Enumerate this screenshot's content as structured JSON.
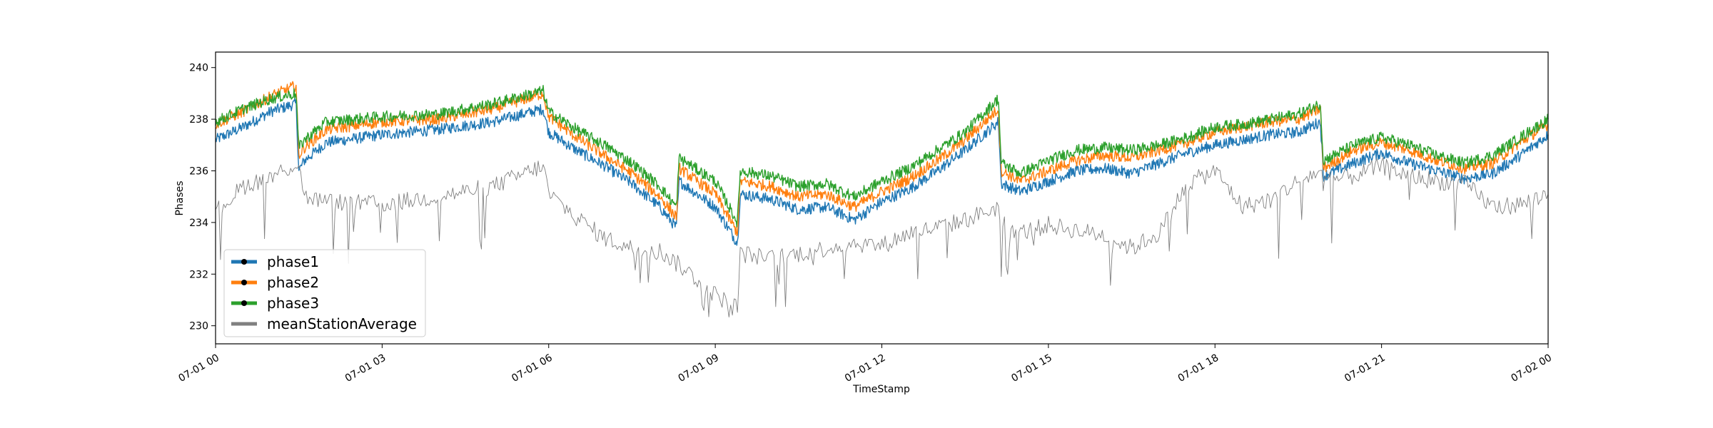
{
  "chart_data": {
    "type": "line",
    "xlabel": "TimeStamp",
    "ylabel": "Phases",
    "xlim_hours": [
      0,
      24
    ],
    "ylim": [
      229.3,
      240.6
    ],
    "x_ticks": [
      {
        "hour": 0,
        "label": "07-01 00"
      },
      {
        "hour": 3,
        "label": "07-01 03"
      },
      {
        "hour": 6,
        "label": "07-01 06"
      },
      {
        "hour": 9,
        "label": "07-01 09"
      },
      {
        "hour": 12,
        "label": "07-01 12"
      },
      {
        "hour": 15,
        "label": "07-01 15"
      },
      {
        "hour": 18,
        "label": "07-01 18"
      },
      {
        "hour": 21,
        "label": "07-01 21"
      },
      {
        "hour": 24,
        "label": "07-02 00"
      }
    ],
    "y_ticks": [
      230,
      232,
      234,
      236,
      238,
      240
    ],
    "legend_position": "lower-left",
    "series": [
      {
        "name": "phase1",
        "color": "#1f77b4",
        "hours": [
          0,
          0.5,
          1.0,
          1.45,
          1.5,
          1.6,
          2.0,
          3.0,
          4.0,
          5.0,
          5.9,
          6.0,
          6.5,
          7.0,
          7.5,
          8.0,
          8.3,
          8.35,
          9.0,
          9.4,
          9.45,
          10.0,
          10.5,
          11.0,
          11.5,
          12.0,
          12.5,
          13.0,
          13.5,
          14.1,
          14.15,
          14.5,
          15.0,
          15.5,
          16.0,
          16.5,
          17.0,
          17.5,
          18.0,
          18.5,
          19.0,
          19.5,
          19.9,
          19.95,
          20.5,
          21.0,
          21.5,
          22.0,
          22.5,
          23.0,
          23.5,
          24.0
        ],
        "values": [
          237.2,
          237.7,
          238.3,
          238.6,
          236.0,
          236.4,
          237.1,
          237.4,
          237.6,
          237.9,
          238.4,
          237.5,
          236.8,
          236.2,
          235.5,
          234.6,
          233.8,
          235.6,
          234.6,
          233.2,
          235.1,
          234.9,
          234.5,
          234.6,
          234.1,
          234.8,
          235.3,
          236.0,
          236.8,
          237.9,
          235.5,
          235.2,
          235.6,
          236.0,
          236.1,
          235.9,
          236.3,
          236.7,
          237.0,
          237.2,
          237.4,
          237.5,
          237.9,
          235.8,
          236.3,
          236.7,
          236.3,
          236.0,
          235.7,
          235.9,
          236.6,
          237.4
        ]
      },
      {
        "name": "phase2",
        "color": "#ff7f0e",
        "hours": [
          0,
          0.5,
          1.0,
          1.45,
          1.5,
          1.6,
          2.0,
          3.0,
          4.0,
          5.0,
          5.9,
          6.0,
          6.5,
          7.0,
          7.5,
          8.0,
          8.3,
          8.35,
          9.0,
          9.4,
          9.45,
          10.0,
          10.5,
          11.0,
          11.5,
          12.0,
          12.5,
          13.0,
          13.5,
          14.1,
          14.15,
          14.5,
          15.0,
          15.5,
          16.0,
          16.5,
          17.0,
          17.5,
          18.0,
          18.5,
          19.0,
          19.5,
          19.9,
          19.95,
          20.5,
          21.0,
          21.5,
          22.0,
          22.5,
          23.0,
          23.5,
          24.0
        ],
        "values": [
          237.8,
          238.3,
          238.9,
          239.3,
          236.6,
          236.9,
          237.6,
          237.9,
          238.0,
          238.4,
          239.0,
          238.1,
          237.3,
          236.6,
          235.9,
          235.0,
          234.2,
          236.1,
          235.1,
          233.6,
          235.6,
          235.4,
          235.0,
          235.1,
          234.6,
          235.2,
          235.7,
          236.4,
          237.2,
          238.4,
          236.0,
          235.6,
          236.0,
          236.4,
          236.6,
          236.5,
          236.8,
          237.1,
          237.5,
          237.7,
          237.9,
          238.0,
          238.4,
          236.1,
          236.8,
          237.1,
          236.8,
          236.4,
          236.1,
          236.3,
          237.1,
          237.8
        ]
      },
      {
        "name": "phase3",
        "color": "#2ca02c",
        "hours": [
          0,
          0.5,
          1.0,
          1.45,
          1.5,
          1.6,
          2.0,
          3.0,
          4.0,
          5.0,
          5.9,
          6.0,
          6.5,
          7.0,
          7.5,
          8.0,
          8.3,
          8.35,
          9.0,
          9.4,
          9.45,
          10.0,
          10.5,
          11.0,
          11.5,
          12.0,
          12.5,
          13.0,
          13.5,
          14.1,
          14.15,
          14.5,
          15.0,
          15.5,
          16.0,
          16.5,
          17.0,
          17.5,
          18.0,
          18.5,
          19.0,
          19.5,
          19.9,
          19.95,
          20.5,
          21.0,
          21.5,
          22.0,
          22.5,
          23.0,
          23.5,
          24.0
        ],
        "values": [
          237.9,
          238.4,
          238.8,
          239.0,
          236.9,
          237.2,
          237.9,
          238.1,
          238.2,
          238.6,
          239.1,
          238.3,
          237.6,
          237.0,
          236.3,
          235.4,
          234.6,
          236.5,
          235.6,
          234.0,
          236.0,
          235.8,
          235.4,
          235.5,
          235.0,
          235.6,
          236.1,
          236.8,
          237.5,
          238.8,
          236.3,
          235.9,
          236.4,
          236.8,
          236.9,
          236.8,
          237.0,
          237.3,
          237.7,
          237.8,
          238.0,
          238.2,
          238.6,
          236.4,
          237.0,
          237.3,
          237.0,
          236.6,
          236.3,
          236.6,
          237.3,
          238.0
        ]
      },
      {
        "name": "meanStationAverage",
        "color": "#808080",
        "hours": [
          0,
          0.5,
          1.0,
          1.5,
          1.6,
          2.0,
          3.0,
          4.0,
          5.0,
          5.9,
          6.0,
          6.5,
          7.0,
          7.5,
          8.0,
          8.5,
          9.0,
          9.4,
          9.45,
          10.0,
          10.5,
          11.0,
          11.5,
          12.0,
          12.5,
          13.0,
          13.5,
          14.1,
          14.15,
          14.5,
          15.0,
          15.5,
          16.0,
          16.5,
          17.0,
          17.5,
          18.0,
          18.5,
          19.0,
          19.5,
          19.9,
          19.95,
          20.5,
          21.0,
          21.5,
          22.0,
          22.5,
          23.0,
          23.5,
          24.0
        ],
        "values": [
          234.4,
          235.4,
          235.8,
          236.3,
          235.0,
          234.8,
          234.7,
          235.0,
          235.4,
          236.2,
          235.1,
          234.2,
          233.4,
          233.0,
          232.9,
          232.1,
          231.2,
          230.7,
          232.8,
          232.6,
          232.8,
          233.0,
          233.2,
          233.1,
          233.6,
          233.8,
          234.1,
          234.6,
          234.0,
          233.6,
          233.9,
          233.7,
          233.5,
          233.0,
          233.6,
          235.5,
          236.0,
          234.6,
          234.9,
          235.6,
          236.0,
          235.6,
          235.8,
          236.2,
          235.8,
          235.6,
          235.5,
          234.6,
          234.7,
          235.1
        ]
      }
    ]
  }
}
